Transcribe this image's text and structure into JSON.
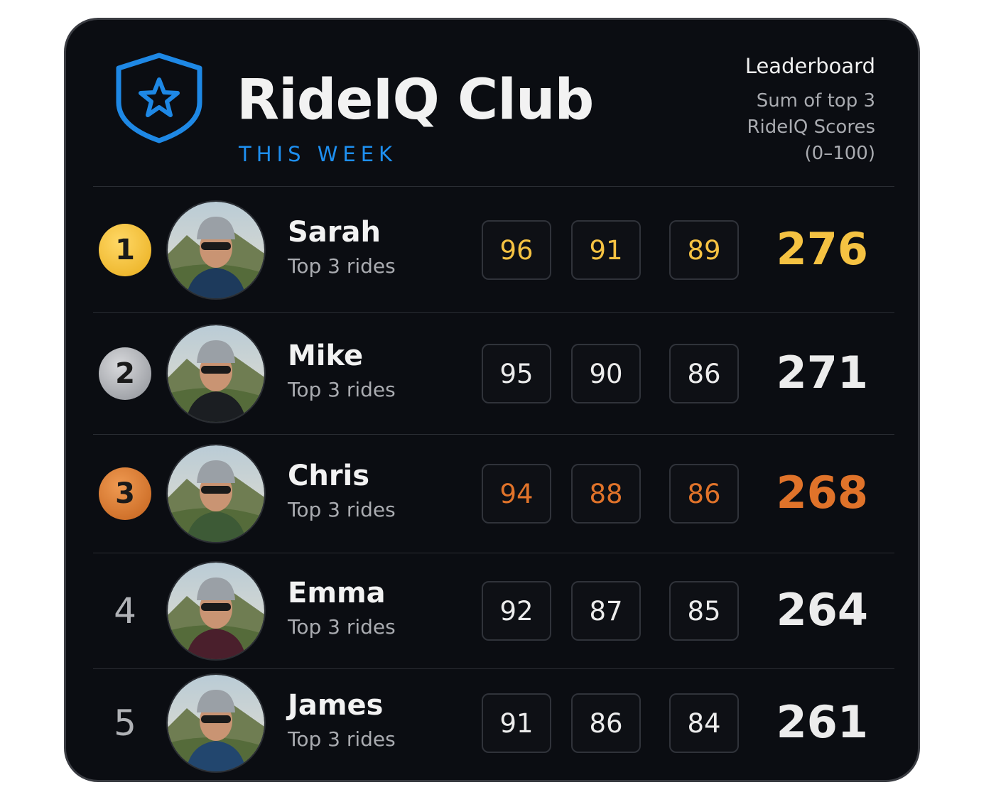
{
  "header": {
    "title": "RideIQ Club",
    "subtitle": "THIS WEEK",
    "panel_title": "Leaderboard",
    "panel_note": [
      "Sum of top 3",
      "RideIQ Scores",
      "(0–100)"
    ]
  },
  "rows": [
    {
      "rank": 1,
      "name": "Sarah",
      "caption": "Top 3 rides",
      "scores": [
        96,
        91,
        89
      ],
      "total": 276
    },
    {
      "rank": 2,
      "name": "Mike",
      "caption": "Top 3 rides",
      "scores": [
        95,
        90,
        86
      ],
      "total": 271
    },
    {
      "rank": 3,
      "name": "Chris",
      "caption": "Top 3 rides",
      "scores": [
        94,
        88,
        86
      ],
      "total": 268
    },
    {
      "rank": 4,
      "name": "Emma",
      "caption": "Top 3 rides",
      "scores": [
        92,
        87,
        85
      ],
      "total": 264
    },
    {
      "rank": 5,
      "name": "James",
      "caption": "Top 3 rides",
      "scores": [
        91,
        86,
        84
      ],
      "total": 261
    }
  ]
}
